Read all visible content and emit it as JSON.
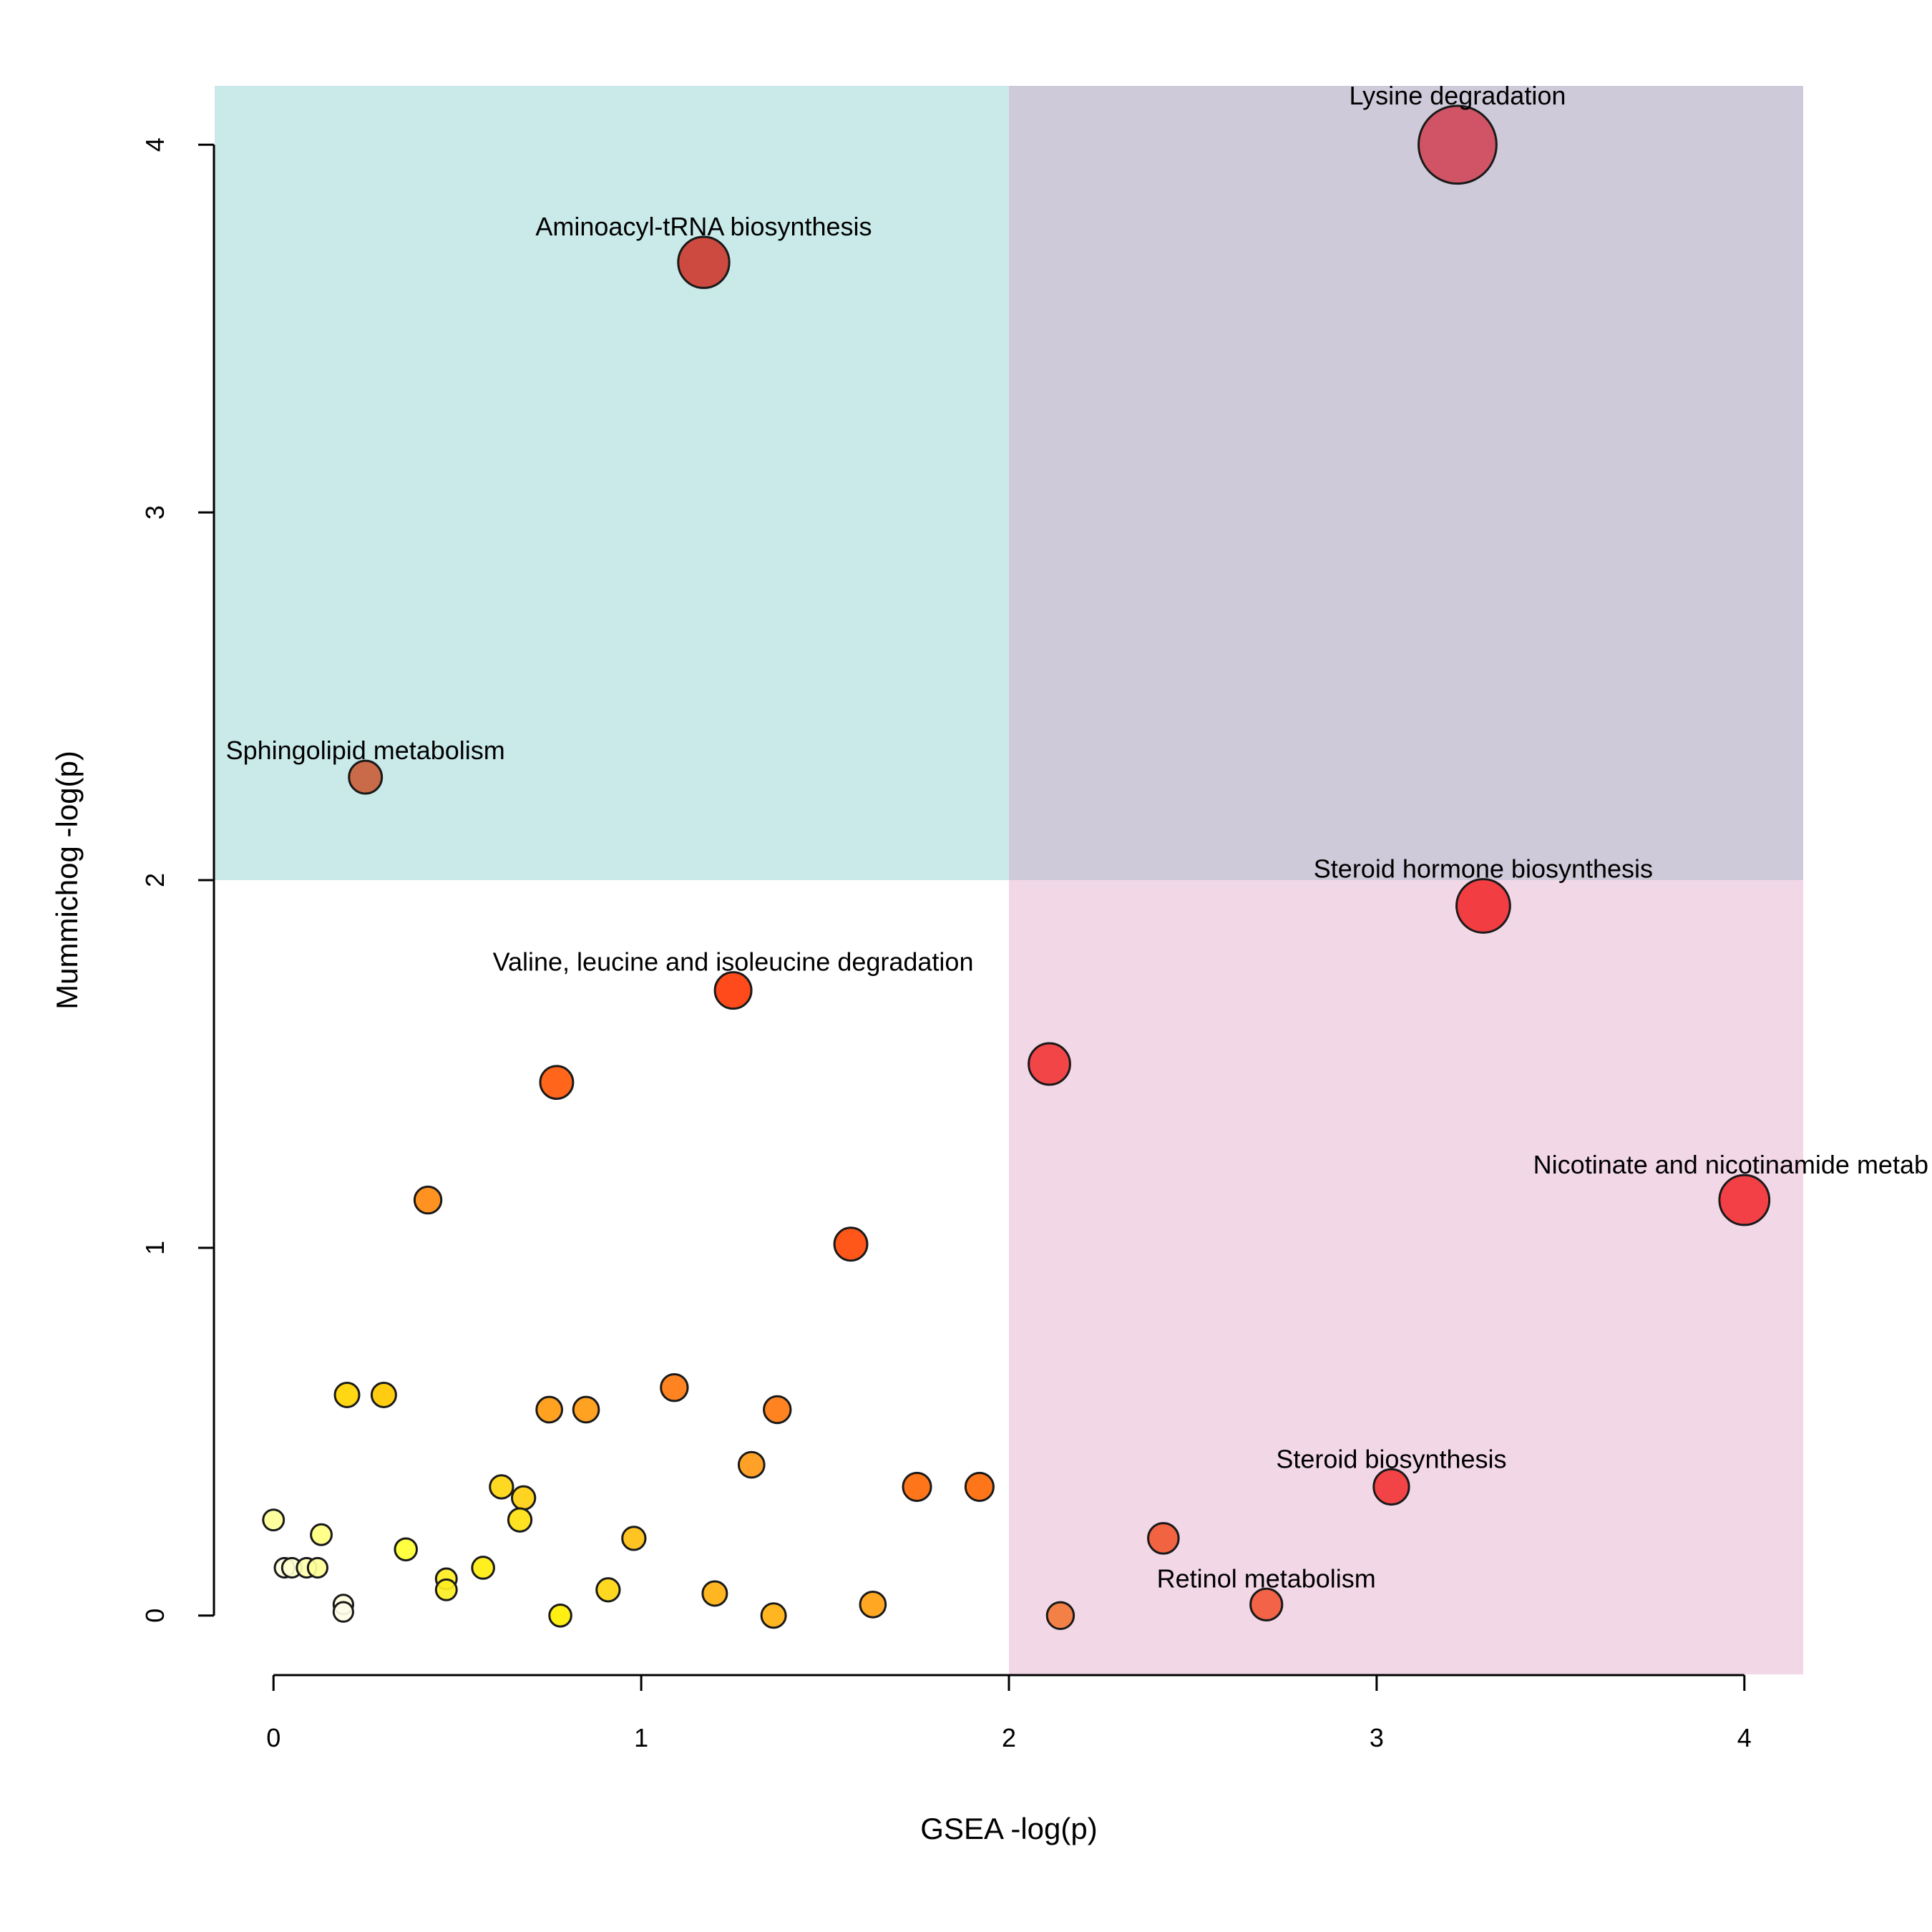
{
  "chart_data": {
    "type": "scatter",
    "title": "",
    "xlabel": "GSEA -log(p)",
    "ylabel": "Mummichog -log(p)",
    "xlim": [
      -0.16,
      4.16
    ],
    "ylim": [
      -0.16,
      4.16
    ],
    "x_ticks": [
      "0",
      "1",
      "2",
      "3",
      "4"
    ],
    "y_ticks": [
      "0",
      "1",
      "2",
      "3",
      "4"
    ],
    "grid": false,
    "legend": "none",
    "thresholds": {
      "x": 2,
      "y": 2
    },
    "quadrant_colors": {
      "top_left": "#c9eae9",
      "top_right": "#cfcad9",
      "bottom_right": "#f2d7e7"
    },
    "points": [
      {
        "x": 3.22,
        "y": 4.0,
        "size": 3.2,
        "color": "#d04b5c",
        "label": "Lysine degradation"
      },
      {
        "x": 1.17,
        "y": 3.68,
        "size": 2.1,
        "color": "#cc3d31",
        "label": "Aminoacyl-tRNA biosynthesis"
      },
      {
        "x": 0.25,
        "y": 2.28,
        "size": 1.35,
        "color": "#c9613c",
        "label": "Sphingolipid metabolism"
      },
      {
        "x": 3.29,
        "y": 1.93,
        "size": 2.2,
        "color": "#f23135",
        "label": "Steroid hormone biosynthesis"
      },
      {
        "x": 1.25,
        "y": 1.7,
        "size": 1.5,
        "color": "#ff3c0a",
        "label": "Valine, leucine and isoleucine degradation"
      },
      {
        "x": 2.11,
        "y": 1.5,
        "size": 1.7,
        "color": "#f23a3a",
        "label": ""
      },
      {
        "x": 0.77,
        "y": 1.45,
        "size": 1.35,
        "color": "#ff5a0a",
        "label": ""
      },
      {
        "x": 0.42,
        "y": 1.13,
        "size": 1.1,
        "color": "#ff8a10",
        "label": ""
      },
      {
        "x": 4.0,
        "y": 1.13,
        "size": 2.05,
        "color": "#f23539",
        "label": "Nicotinate and nicotinamide metab"
      },
      {
        "x": 1.57,
        "y": 1.01,
        "size": 1.35,
        "color": "#ff4a08",
        "label": ""
      },
      {
        "x": 0.2,
        "y": 0.6,
        "size": 1.0,
        "color": "#ffd400",
        "label": ""
      },
      {
        "x": 0.3,
        "y": 0.6,
        "size": 1.0,
        "color": "#ffc800",
        "label": ""
      },
      {
        "x": 1.09,
        "y": 0.62,
        "size": 1.1,
        "color": "#ff7a10",
        "label": ""
      },
      {
        "x": 0.75,
        "y": 0.56,
        "size": 1.05,
        "color": "#ff9a10",
        "label": ""
      },
      {
        "x": 0.85,
        "y": 0.56,
        "size": 1.05,
        "color": "#ff9a10",
        "label": ""
      },
      {
        "x": 1.37,
        "y": 0.56,
        "size": 1.1,
        "color": "#ff7a10",
        "label": ""
      },
      {
        "x": 1.3,
        "y": 0.41,
        "size": 1.05,
        "color": "#ff9a15",
        "label": ""
      },
      {
        "x": 0.62,
        "y": 0.35,
        "size": 0.95,
        "color": "#ffd510",
        "label": ""
      },
      {
        "x": 0.68,
        "y": 0.32,
        "size": 0.95,
        "color": "#ffd010",
        "label": ""
      },
      {
        "x": 1.75,
        "y": 0.35,
        "size": 1.15,
        "color": "#ff6a08",
        "label": ""
      },
      {
        "x": 1.92,
        "y": 0.35,
        "size": 1.15,
        "color": "#ff6a08",
        "label": ""
      },
      {
        "x": 3.04,
        "y": 0.35,
        "size": 1.45,
        "color": "#f2393a",
        "label": "Steroid biosynthesis"
      },
      {
        "x": 0.0,
        "y": 0.26,
        "size": 0.85,
        "color": "#ffff99",
        "label": ""
      },
      {
        "x": 0.67,
        "y": 0.26,
        "size": 0.95,
        "color": "#ffe010",
        "label": ""
      },
      {
        "x": 0.13,
        "y": 0.22,
        "size": 0.85,
        "color": "#ffff80",
        "label": ""
      },
      {
        "x": 0.98,
        "y": 0.21,
        "size": 0.95,
        "color": "#ffc010",
        "label": ""
      },
      {
        "x": 2.42,
        "y": 0.21,
        "size": 1.25,
        "color": "#f25a35",
        "label": ""
      },
      {
        "x": 0.36,
        "y": 0.18,
        "size": 0.9,
        "color": "#ffff33",
        "label": ""
      },
      {
        "x": 0.03,
        "y": 0.13,
        "size": 0.8,
        "color": "#ffffe0",
        "label": ""
      },
      {
        "x": 0.05,
        "y": 0.13,
        "size": 0.8,
        "color": "#ffffd0",
        "label": ""
      },
      {
        "x": 0.09,
        "y": 0.13,
        "size": 0.8,
        "color": "#ffffb0",
        "label": ""
      },
      {
        "x": 0.12,
        "y": 0.13,
        "size": 0.8,
        "color": "#ffff99",
        "label": ""
      },
      {
        "x": 0.57,
        "y": 0.13,
        "size": 0.9,
        "color": "#ffee10",
        "label": ""
      },
      {
        "x": 0.47,
        "y": 0.1,
        "size": 0.85,
        "color": "#ffee22",
        "label": ""
      },
      {
        "x": 0.47,
        "y": 0.07,
        "size": 0.85,
        "color": "#ffee22",
        "label": ""
      },
      {
        "x": 0.91,
        "y": 0.07,
        "size": 0.95,
        "color": "#ffd510",
        "label": ""
      },
      {
        "x": 1.2,
        "y": 0.06,
        "size": 1.0,
        "color": "#ffb010",
        "label": ""
      },
      {
        "x": 0.19,
        "y": 0.03,
        "size": 0.8,
        "color": "#ffffe0",
        "label": ""
      },
      {
        "x": 1.63,
        "y": 0.03,
        "size": 1.05,
        "color": "#ffa012",
        "label": ""
      },
      {
        "x": 2.7,
        "y": 0.03,
        "size": 1.3,
        "color": "#f25a3a",
        "label": "Retinol metabolism"
      },
      {
        "x": 0.19,
        "y": 0.01,
        "size": 0.8,
        "color": "#ffffea",
        "label": ""
      },
      {
        "x": 0.78,
        "y": 0.0,
        "size": 0.9,
        "color": "#ffee00",
        "label": ""
      },
      {
        "x": 1.36,
        "y": 0.0,
        "size": 1.0,
        "color": "#ffb010",
        "label": ""
      },
      {
        "x": 2.14,
        "y": 0.0,
        "size": 1.1,
        "color": "#f27a3a",
        "label": ""
      }
    ]
  }
}
